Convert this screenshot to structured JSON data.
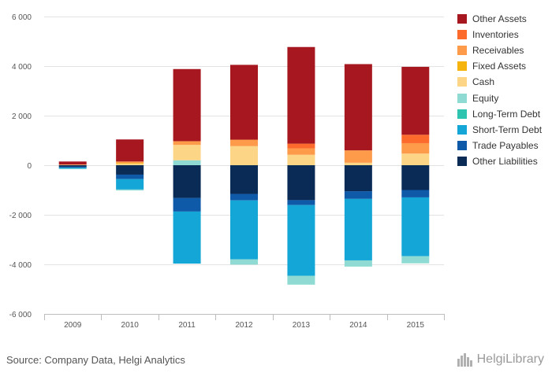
{
  "source_text": "Source: Company Data, Helgi Analytics",
  "logo": {
    "text": "HelgiLibrary",
    "icon": "city-skyline-icon"
  },
  "chart_data": {
    "type": "bar",
    "stacked": true,
    "categories": [
      "2009",
      "2010",
      "2011",
      "2012",
      "2013",
      "2014",
      "2015"
    ],
    "ylim": [
      -6000,
      6000
    ],
    "yticks": [
      6000,
      4000,
      2000,
      0,
      -2000,
      -4000,
      -6000
    ],
    "ytick_labels": [
      "6 000",
      "4 000",
      "2 000",
      "0",
      "-2 000",
      "-4 000",
      "-6 000"
    ],
    "grid": true,
    "legend_position": "right",
    "title": "",
    "xlabel": "",
    "ylabel": "",
    "series": [
      {
        "name": "Other Liabilities",
        "color": "#0b2b57",
        "values": [
          -60,
          -380,
          -1320,
          -1160,
          -1410,
          -1050,
          -1000
        ]
      },
      {
        "name": "Trade Payables",
        "color": "#0f5aa8",
        "values": [
          -40,
          -180,
          -550,
          -260,
          -200,
          -310,
          -300
        ]
      },
      {
        "name": "Short-Term Debt",
        "color": "#13a6d6",
        "values": [
          -40,
          -420,
          -2100,
          -2380,
          -2850,
          -2480,
          -2370
        ]
      },
      {
        "name": "Long-Term Debt",
        "color": "#2ec4b0",
        "values": [
          0,
          0,
          0,
          0,
          0,
          0,
          0
        ]
      },
      {
        "name": "Equity",
        "color": "#8fdbd3",
        "values": [
          -20,
          -40,
          200,
          -210,
          -360,
          -250,
          -290
        ]
      },
      {
        "name": "Cash",
        "color": "#fdd587",
        "values": [
          10,
          60,
          620,
          770,
          420,
          100,
          470
        ]
      },
      {
        "name": "Fixed Assets",
        "color": "#f6b40e",
        "values": [
          0,
          30,
          0,
          0,
          0,
          0,
          0
        ]
      },
      {
        "name": "Receivables",
        "color": "#fd9b4a",
        "values": [
          20,
          60,
          150,
          260,
          260,
          500,
          420
        ]
      },
      {
        "name": "Inventories",
        "color": "#fc6a2c",
        "values": [
          0,
          0,
          0,
          0,
          190,
          0,
          340
        ]
      },
      {
        "name": "Other Assets",
        "color": "#a6171f",
        "values": [
          120,
          890,
          2910,
          3020,
          3900,
          3480,
          2740
        ]
      }
    ]
  }
}
